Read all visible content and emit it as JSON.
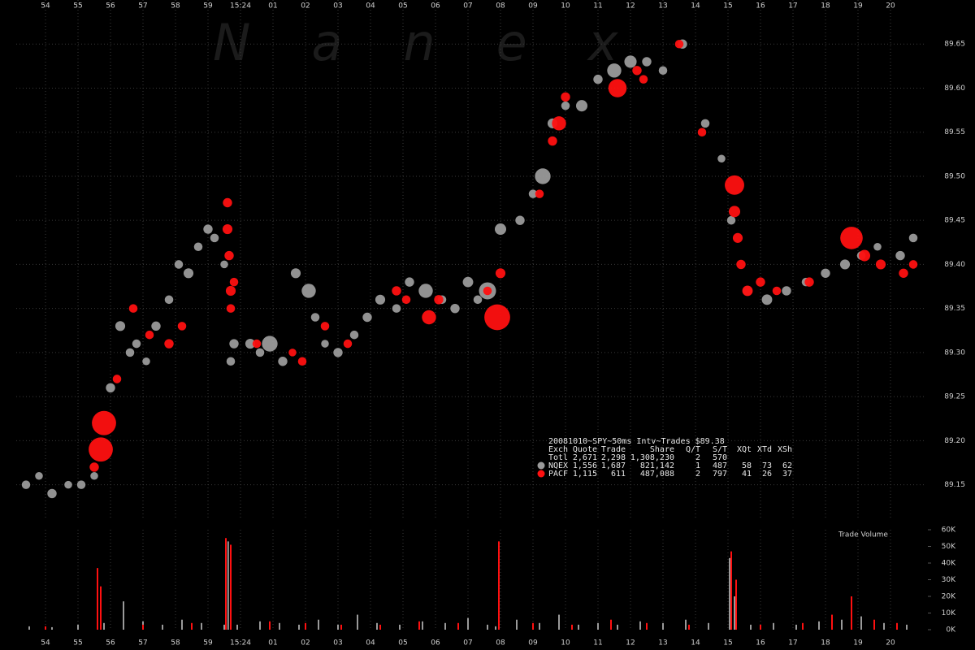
{
  "chart_data": [
    {
      "type": "scatter",
      "watermark": "Nanex",
      "xlim": [
        -6.9,
        21.1
      ],
      "xticks": [
        {
          "value": -6,
          "label": "54"
        },
        {
          "value": -5,
          "label": "55"
        },
        {
          "value": -4,
          "label": "56"
        },
        {
          "value": -3,
          "label": "57"
        },
        {
          "value": -2,
          "label": "58"
        },
        {
          "value": -1,
          "label": "59"
        },
        {
          "value": 0,
          "label": "15:24"
        },
        {
          "value": 1,
          "label": "01"
        },
        {
          "value": 2,
          "label": "02"
        },
        {
          "value": 3,
          "label": "03"
        },
        {
          "value": 4,
          "label": "04"
        },
        {
          "value": 5,
          "label": "05"
        },
        {
          "value": 6,
          "label": "06"
        },
        {
          "value": 7,
          "label": "07"
        },
        {
          "value": 8,
          "label": "08"
        },
        {
          "value": 9,
          "label": "09"
        },
        10,
        11,
        12,
        13,
        14,
        15,
        16,
        17,
        18,
        19,
        20
      ],
      "ylim": [
        89.11,
        89.7
      ],
      "yticks": [
        89.15,
        {
          "value": 89.2,
          "label": "89.20"
        },
        89.25,
        {
          "value": 89.3,
          "label": "89.30"
        },
        89.35,
        {
          "value": 89.4,
          "label": "89.40"
        },
        89.45,
        {
          "value": 89.5,
          "label": "89.50"
        },
        89.55,
        {
          "value": 89.6,
          "label": "89.60"
        },
        89.65
      ],
      "grid": true,
      "series": [
        {
          "name": "NQEX",
          "color": "#9a9a9a",
          "x": [
            -6.6,
            -6.2,
            -5.8,
            -5.3,
            -4.9,
            -4.5,
            -4.0,
            -3.7,
            -3.4,
            -3.2,
            -2.9,
            -2.6,
            -2.2,
            -1.9,
            -1.6,
            -1.3,
            -1.0,
            -0.8,
            -0.5,
            -0.3,
            -0.2,
            0.3,
            0.6,
            0.9,
            1.3,
            1.7,
            2.1,
            2.3,
            2.6,
            3.0,
            3.5,
            3.9,
            4.3,
            4.8,
            5.2,
            5.7,
            6.2,
            6.6,
            7.0,
            7.3,
            7.6,
            8.0,
            8.6,
            9.0,
            9.3,
            9.6,
            10.0,
            10.5,
            11.0,
            11.5,
            12.0,
            12.5,
            13.0,
            13.6,
            14.3,
            14.8,
            15.1,
            15.6,
            16.2,
            16.8,
            17.4,
            18.0,
            18.6,
            19.1,
            19.6,
            20.3,
            20.7
          ],
          "values": [
            89.15,
            89.16,
            89.14,
            89.15,
            89.15,
            89.16,
            89.26,
            89.33,
            89.3,
            89.31,
            89.29,
            89.33,
            89.36,
            89.4,
            89.39,
            89.42,
            89.44,
            89.43,
            89.4,
            89.29,
            89.31,
            89.31,
            89.3,
            89.31,
            89.29,
            89.39,
            89.37,
            89.34,
            89.31,
            89.3,
            89.32,
            89.34,
            89.36,
            89.35,
            89.38,
            89.37,
            89.36,
            89.35,
            89.38,
            89.36,
            89.37,
            89.44,
            89.45,
            89.48,
            89.5,
            89.56,
            89.58,
            89.58,
            89.61,
            89.62,
            89.63,
            89.63,
            89.62,
            89.65,
            89.56,
            89.52,
            89.45,
            89.37,
            89.36,
            89.37,
            89.38,
            89.39,
            89.4,
            89.41,
            89.42,
            89.41,
            89.43
          ],
          "sizes": [
            300,
            200,
            400,
            200,
            300,
            200,
            400,
            500,
            300,
            300,
            200,
            400,
            300,
            300,
            500,
            300,
            400,
            300,
            200,
            300,
            400,
            500,
            300,
            2000,
            400,
            500,
            1500,
            300,
            200,
            400,
            300,
            400,
            500,
            300,
            400,
            1500,
            300,
            400,
            600,
            300,
            2500,
            800,
            400,
            300,
            2000,
            500,
            300,
            800,
            400,
            1500,
            1000,
            400,
            300,
            400,
            300,
            200,
            300,
            500,
            600,
            400,
            300,
            400,
            500,
            300,
            200,
            400,
            300
          ]
        },
        {
          "name": "PACF",
          "color": "#ff1010",
          "x": [
            -4.5,
            -4.3,
            -4.2,
            -3.8,
            -3.3,
            -2.8,
            -2.2,
            -1.8,
            -0.4,
            -0.4,
            -0.35,
            -0.3,
            -0.3,
            -0.2,
            0.5,
            1.6,
            1.9,
            2.6,
            3.3,
            4.8,
            5.1,
            5.8,
            6.1,
            7.6,
            7.9,
            8.0,
            9.2,
            9.6,
            9.8,
            10.0,
            11.6,
            12.2,
            12.4,
            13.5,
            14.2,
            15.2,
            15.2,
            15.3,
            15.4,
            15.6,
            16.0,
            16.5,
            17.5,
            18.8,
            19.2,
            19.7,
            20.4,
            20.7
          ],
          "values": [
            89.17,
            89.19,
            89.22,
            89.27,
            89.35,
            89.32,
            89.31,
            89.33,
            89.47,
            89.44,
            89.41,
            89.37,
            89.35,
            89.38,
            89.31,
            89.3,
            89.29,
            89.33,
            89.31,
            89.37,
            89.36,
            89.34,
            89.36,
            89.37,
            89.34,
            89.39,
            89.48,
            89.54,
            89.56,
            89.59,
            89.6,
            89.62,
            89.61,
            89.65,
            89.55,
            89.49,
            89.46,
            89.43,
            89.4,
            89.37,
            89.38,
            89.37,
            89.38,
            89.43,
            89.41,
            89.4,
            89.39,
            89.4
          ],
          "sizes": [
            400,
            6000,
            6000,
            300,
            300,
            300,
            400,
            300,
            400,
            500,
            400,
            500,
            300,
            300,
            300,
            200,
            300,
            300,
            300,
            400,
            300,
            1500,
            400,
            300,
            7000,
            500,
            300,
            400,
            1500,
            400,
            3000,
            400,
            300,
            300,
            300,
            3500,
            800,
            500,
            400,
            600,
            400,
            300,
            400,
            5000,
            800,
            500,
            400,
            300
          ]
        }
      ],
      "stats": {
        "header": "20081010~SPY~50ms Intv~Trades $89.38",
        "columns": [
          "Exch",
          "Quote",
          "Trade",
          "Share",
          "Q/T",
          "S/T",
          "XQt",
          "XTd",
          "XSh"
        ],
        "total_row": {
          "label": "Totl",
          "cells": [
            "2,671",
            "2,298",
            "1,308,230",
            "2",
            "570"
          ]
        },
        "series_cells": [
          [
            "1,556",
            "1,687",
            "821,142",
            "1",
            "487",
            "58",
            "73",
            "62"
          ],
          [
            "1,115",
            "611",
            "487,088",
            "2",
            "797",
            "41",
            "26",
            "37"
          ]
        ]
      }
    },
    {
      "type": "bar",
      "title": "Trade Volume",
      "xlim": [
        -6.9,
        21.1
      ],
      "xticks": [
        {
          "value": -6,
          "label": "54"
        },
        {
          "value": -5,
          "label": "55"
        },
        {
          "value": -4,
          "label": "56"
        },
        {
          "value": -3,
          "label": "57"
        },
        {
          "value": -2,
          "label": "58"
        },
        {
          "value": -1,
          "label": "59"
        },
        {
          "value": 0,
          "label": "15:24"
        },
        {
          "value": 1,
          "label": "01"
        },
        {
          "value": 2,
          "label": "02"
        },
        {
          "value": 3,
          "label": "03"
        },
        {
          "value": 4,
          "label": "04"
        },
        {
          "value": 5,
          "label": "05"
        },
        {
          "value": 6,
          "label": "06"
        },
        {
          "value": 7,
          "label": "07"
        },
        {
          "value": 8,
          "label": "08"
        },
        {
          "value": 9,
          "label": "09"
        },
        10,
        11,
        12,
        13,
        14,
        15,
        16,
        17,
        18,
        19,
        20
      ],
      "ylim": [
        0,
        60000
      ],
      "yticks": [
        {
          "value": 0,
          "label": "0K"
        },
        {
          "value": 10000,
          "label": "10K"
        },
        {
          "value": 20000,
          "label": "20K"
        },
        {
          "value": 30000,
          "label": "30K"
        },
        {
          "value": 40000,
          "label": "40K"
        },
        {
          "value": 50000,
          "label": "50K"
        },
        {
          "value": 60000,
          "label": "60K"
        }
      ],
      "grid": false,
      "series": [
        {
          "name": "NQEX",
          "color": "#9a9a9a",
          "x": [
            -6.5,
            -5.8,
            -5.0,
            -4.2,
            -3.6,
            -3.0,
            -2.4,
            -1.8,
            -1.2,
            -0.5,
            -0.38,
            -0.1,
            0.6,
            1.2,
            1.8,
            2.4,
            3.0,
            3.6,
            4.2,
            4.9,
            5.6,
            6.3,
            7.0,
            7.6,
            7.85,
            8.5,
            9.2,
            9.8,
            10.4,
            11.0,
            11.6,
            12.3,
            13.0,
            13.7,
            14.4,
            15.05,
            15.2,
            15.7,
            16.4,
            17.1,
            17.8,
            18.5,
            19.1,
            19.8,
            20.5
          ],
          "values": [
            2000,
            1500,
            3000,
            4000,
            17000,
            5000,
            3000,
            6000,
            4000,
            3000,
            53000,
            3000,
            5000,
            4000,
            3000,
            6000,
            3000,
            9000,
            4000,
            3000,
            5000,
            4000,
            7000,
            3000,
            2000,
            6000,
            4000,
            9000,
            3000,
            4000,
            3000,
            5000,
            4000,
            6000,
            4000,
            43000,
            20000,
            3000,
            4000,
            3000,
            5000,
            6000,
            8000,
            4000,
            3000
          ]
        },
        {
          "name": "PACF",
          "color": "#ff1010",
          "x": [
            -6.0,
            -4.4,
            -4.3,
            -3.0,
            -1.5,
            -0.45,
            -0.3,
            0.9,
            2.0,
            3.1,
            4.3,
            5.5,
            6.7,
            7.95,
            9.0,
            10.2,
            11.4,
            12.5,
            13.8,
            15.1,
            15.25,
            16.0,
            17.3,
            18.2,
            18.8,
            19.5,
            20.2
          ],
          "values": [
            2000,
            37000,
            26000,
            3000,
            4000,
            55000,
            51000,
            5000,
            4000,
            3000,
            3000,
            5000,
            4000,
            53000,
            4000,
            3000,
            6000,
            4000,
            3000,
            47000,
            30000,
            3000,
            4000,
            9000,
            20000,
            6000,
            4000
          ]
        }
      ]
    }
  ]
}
